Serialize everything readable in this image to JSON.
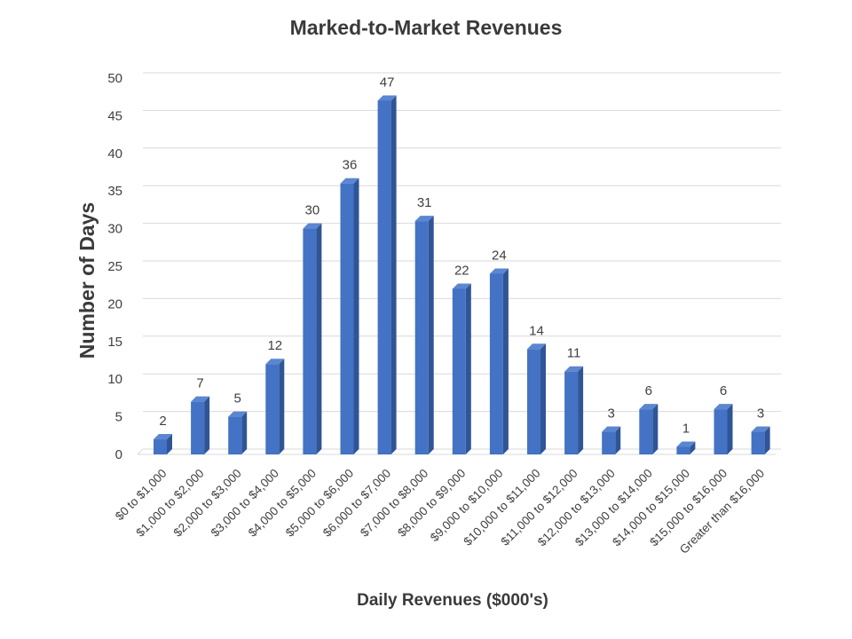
{
  "chart_data": {
    "type": "bar",
    "title": "Marked-to-Market Revenues",
    "xlabel": "Daily Revenues ($000's)",
    "ylabel": "Number of Days",
    "ylim": [
      0,
      50
    ],
    "yticks": [
      0,
      5,
      10,
      15,
      20,
      25,
      30,
      35,
      40,
      45,
      50
    ],
    "grid": true,
    "legend": "none",
    "categories": [
      "$0 to $1,000",
      "$1,000 to $2,000",
      "$2,000 to $3,000",
      "$3,000 to $4,000",
      "$4,000 to $5,000",
      "$5,000 to $6,000",
      "$6,000 to $7,000",
      "$7,000 to $8,000",
      "$8,000 to $9,000",
      "$9,000 to $10,000",
      "$10,000 to $11,000",
      "$11,000 to $12,000",
      "$12,000 to $13,000",
      "$13,000 to $14,000",
      "$14,000 to $15,000",
      "$15,000 to $16,000",
      "Greater than $16,000"
    ],
    "values": [
      2,
      7,
      5,
      12,
      30,
      36,
      47,
      31,
      22,
      24,
      14,
      11,
      3,
      6,
      1,
      6,
      3
    ],
    "colors": {
      "bar_front": "#4472c4",
      "bar_side": "#2f5597",
      "bar_top": "#5b86d1",
      "grid": "#d9d9d9",
      "text": "#404040"
    }
  }
}
